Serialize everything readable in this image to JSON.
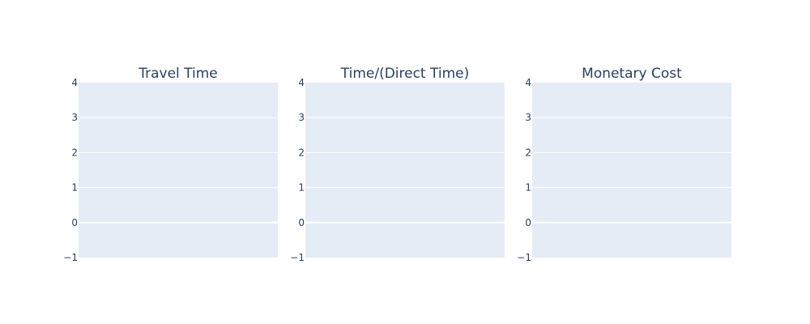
{
  "chart_data": [
    {
      "type": "scatter",
      "title": "Travel Time",
      "xlabel": "",
      "ylabel": "",
      "series": [],
      "ylim": [
        -1,
        4
      ],
      "yticks": [
        -1,
        0,
        1,
        2,
        3,
        4
      ],
      "ytick_labels": [
        "−1",
        "0",
        "1",
        "2",
        "3",
        "4"
      ],
      "grid": true,
      "x_ticks_visible": false
    },
    {
      "type": "scatter",
      "title": "Time/(Direct Time)",
      "xlabel": "",
      "ylabel": "",
      "series": [],
      "ylim": [
        -1,
        4
      ],
      "yticks": [
        -1,
        0,
        1,
        2,
        3,
        4
      ],
      "ytick_labels": [
        "−1",
        "0",
        "1",
        "2",
        "3",
        "4"
      ],
      "grid": true,
      "x_ticks_visible": false
    },
    {
      "type": "scatter",
      "title": "Monetary Cost",
      "xlabel": "",
      "ylabel": "",
      "series": [],
      "ylim": [
        -1,
        4
      ],
      "yticks": [
        -1,
        0,
        1,
        2,
        3,
        4
      ],
      "ytick_labels": [
        "−1",
        "0",
        "1",
        "2",
        "3",
        "4"
      ],
      "grid": true,
      "x_ticks_visible": false
    }
  ],
  "colors": {
    "plot_background": "#e5ecf6",
    "gridline": "#ffffff",
    "text": "#2a3f5f",
    "paper_background": "#ffffff"
  }
}
